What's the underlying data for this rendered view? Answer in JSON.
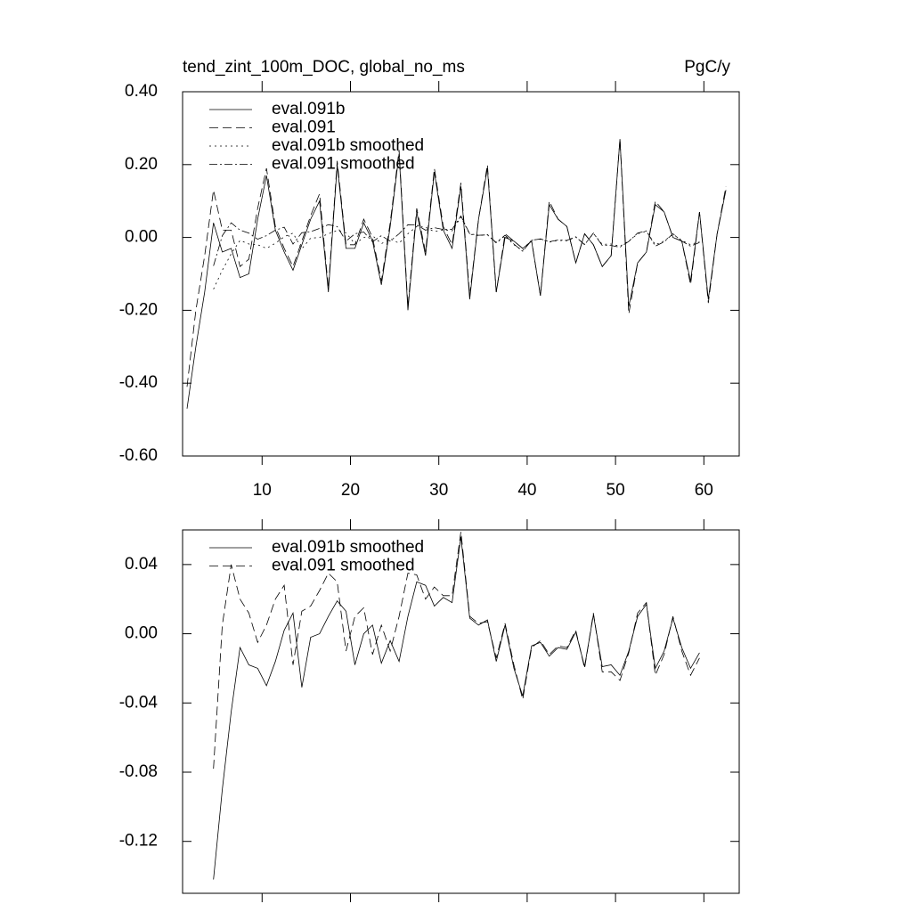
{
  "chart_data": [
    {
      "type": "line",
      "title": "tend_zint_100m_DOC, global_no_ms",
      "units": "PgC/y",
      "xlim": [
        1,
        64
      ],
      "xticks": [
        10,
        20,
        30,
        40,
        50,
        60
      ],
      "ylim": [
        -0.6,
        0.4
      ],
      "yticks": [
        {
          "value": -0.6,
          "label": "-0.60"
        },
        {
          "value": -0.4,
          "label": "-0.40"
        },
        {
          "value": -0.2,
          "label": "-0.20"
        },
        {
          "value": 0,
          "label": "0.00"
        },
        {
          "value": 0.2,
          "label": "0.20"
        },
        {
          "value": 0.4,
          "label": "0.40"
        }
      ],
      "legend": "upper left",
      "series": [
        {
          "name": "eval.091b",
          "color": "#000000",
          "dash": "solid",
          "x": [
            1.5,
            2.5,
            3.5,
            4.5,
            5.5,
            6.5,
            7.5,
            8.5,
            9.5,
            10.5,
            11.5,
            12.5,
            13.5,
            14.5,
            15.5,
            16.5,
            17.5,
            18.5,
            19.5,
            20.5,
            21.5,
            22.5,
            23.5,
            24.5,
            25.5,
            26.5,
            27.5,
            28.5,
            29.5,
            30.5,
            31.5,
            32.5,
            33.5,
            34.5,
            35.5,
            36.5,
            37.5,
            38.5,
            39.5,
            40.5,
            41.5,
            42.5,
            43.5,
            44.5,
            45.5,
            46.5,
            47.5,
            48.5,
            49.5,
            50.5,
            51.5,
            52.5,
            53.5,
            54.5,
            55.5,
            56.5,
            57.5,
            58.5,
            59.5,
            60.5,
            61.5,
            62.5
          ],
          "values": [
            -0.47,
            -0.3,
            -0.15,
            0.04,
            -0.04,
            -0.03,
            -0.11,
            -0.1,
            0.05,
            0.17,
            0.02,
            -0.04,
            -0.09,
            -0.02,
            0.05,
            0.1,
            -0.15,
            0.2,
            -0.03,
            -0.03,
            0.04,
            -0.01,
            -0.13,
            0.03,
            0.23,
            -0.2,
            0.07,
            -0.05,
            0.18,
            0.02,
            -0.03,
            0.14,
            -0.17,
            0.05,
            0.19,
            -0.15,
            0.0,
            -0.01,
            -0.03,
            -0.01,
            -0.16,
            0.09,
            0.05,
            0.03,
            -0.07,
            0.01,
            -0.02,
            -0.08,
            -0.05,
            0.27,
            -0.19,
            -0.07,
            -0.04,
            0.09,
            0.07,
            0.0,
            -0.01,
            -0.12,
            0.07,
            -0.17,
            0.01,
            0.13
          ]
        },
        {
          "name": "eval.091",
          "color": "#000000",
          "dash": "dashed",
          "x": [
            1.5,
            2.5,
            3.5,
            4.5,
            5.5,
            6.5,
            7.5,
            8.5,
            9.5,
            10.5,
            11.5,
            12.5,
            13.5,
            14.5,
            15.5,
            16.5,
            17.5,
            18.5,
            19.5,
            20.5,
            21.5,
            22.5,
            23.5,
            24.5,
            25.5,
            26.5,
            27.5,
            28.5,
            29.5,
            30.5,
            31.5,
            32.5,
            33.5,
            34.5,
            35.5,
            36.5,
            37.5,
            38.5,
            39.5,
            40.5,
            41.5,
            42.5,
            43.5,
            44.5,
            45.5,
            46.5,
            47.5,
            48.5,
            49.5,
            50.5,
            51.5,
            52.5,
            53.5,
            54.5,
            55.5,
            56.5,
            57.5,
            58.5,
            59.5,
            60.5,
            61.5,
            62.5
          ],
          "values": [
            -0.41,
            -0.2,
            -0.05,
            0.13,
            0.02,
            0.02,
            -0.08,
            -0.06,
            0.08,
            0.19,
            0.03,
            -0.03,
            -0.08,
            -0.01,
            0.06,
            0.12,
            -0.14,
            0.21,
            -0.02,
            -0.02,
            0.05,
            0.0,
            -0.12,
            0.04,
            0.24,
            -0.19,
            0.08,
            -0.04,
            0.19,
            0.03,
            -0.02,
            0.15,
            -0.16,
            0.05,
            0.2,
            -0.15,
            0.01,
            -0.01,
            -0.03,
            -0.01,
            -0.16,
            0.1,
            0.05,
            0.03,
            -0.07,
            0.01,
            -0.02,
            -0.08,
            -0.05,
            0.27,
            -0.21,
            -0.07,
            -0.04,
            0.1,
            0.07,
            0.0,
            -0.01,
            -0.13,
            0.07,
            -0.18,
            0.01,
            0.14
          ]
        },
        {
          "name": "eval.091b smoothed",
          "color": "#000000",
          "dash": "dotted",
          "x": [
            4.5,
            5.5,
            6.5,
            7.5,
            8.5,
            9.5,
            10.5,
            11.5,
            12.5,
            13.5,
            14.5,
            15.5,
            16.5,
            17.5,
            18.5,
            19.5,
            20.5,
            21.5,
            22.5,
            23.5,
            24.5,
            25.5,
            26.5,
            27.5,
            28.5,
            29.5,
            30.5,
            31.5,
            32.5,
            33.5,
            34.5,
            35.5,
            36.5,
            37.5,
            38.5,
            39.5,
            40.5,
            41.5,
            42.5,
            43.5,
            44.5,
            45.5,
            46.5,
            47.5,
            48.5,
            49.5,
            50.5,
            51.5,
            52.5,
            53.5,
            54.5,
            55.5,
            56.5,
            57.5,
            58.5,
            59.5
          ],
          "values": [
            -0.142,
            -0.09,
            -0.045,
            -0.008,
            -0.018,
            -0.02,
            -0.03,
            -0.016,
            0.002,
            0.012,
            -0.031,
            -0.002,
            0.0,
            0.01,
            0.019,
            0.013,
            -0.018,
            0.0,
            0.005,
            -0.017,
            -0.004,
            -0.016,
            0.01,
            0.03,
            0.028,
            0.016,
            0.021,
            0.018,
            0.056,
            0.009,
            0.005,
            0.008,
            -0.016,
            0.005,
            -0.02,
            -0.036,
            -0.007,
            -0.005,
            -0.013,
            -0.008,
            -0.009,
            0.001,
            -0.019,
            0.011,
            -0.019,
            -0.018,
            -0.024,
            -0.01,
            0.01,
            0.017,
            -0.02,
            -0.01,
            0.009,
            -0.008,
            -0.02,
            -0.011
          ]
        },
        {
          "name": "eval.091 smoothed",
          "color": "#000000",
          "dash": "dashdot",
          "x": [
            4.5,
            5.5,
            6.5,
            7.5,
            8.5,
            9.5,
            10.5,
            11.5,
            12.5,
            13.5,
            14.5,
            15.5,
            16.5,
            17.5,
            18.5,
            19.5,
            20.5,
            21.5,
            22.5,
            23.5,
            24.5,
            25.5,
            26.5,
            27.5,
            28.5,
            29.5,
            30.5,
            31.5,
            32.5,
            33.5,
            34.5,
            35.5,
            36.5,
            37.5,
            38.5,
            39.5,
            40.5,
            41.5,
            42.5,
            43.5,
            44.5,
            45.5,
            46.5,
            47.5,
            48.5,
            49.5,
            50.5,
            51.5,
            52.5,
            53.5,
            54.5,
            55.5,
            56.5,
            57.5,
            58.5,
            59.5
          ],
          "values": [
            -0.078,
            0.005,
            0.04,
            0.02,
            0.012,
            -0.005,
            0.005,
            0.02,
            0.028,
            -0.018,
            0.013,
            0.016,
            0.025,
            0.035,
            0.03,
            -0.01,
            0.01,
            0.015,
            -0.012,
            0.005,
            -0.01,
            0.01,
            0.035,
            0.034,
            0.02,
            0.027,
            0.022,
            0.022,
            0.059,
            0.01,
            0.006,
            0.007,
            -0.014,
            0.006,
            -0.018,
            -0.038,
            -0.008,
            -0.004,
            -0.012,
            -0.007,
            -0.008,
            0.002,
            -0.02,
            0.012,
            -0.022,
            -0.022,
            -0.027,
            -0.011,
            0.012,
            0.018,
            -0.024,
            -0.012,
            0.01,
            -0.01,
            -0.024,
            -0.014
          ]
        }
      ]
    },
    {
      "type": "line",
      "xlim": [
        1,
        64
      ],
      "xticks": [
        10,
        20,
        30,
        40,
        50,
        60
      ],
      "ylim": [
        -0.15,
        0.06
      ],
      "yticks": [
        {
          "value": -0.12,
          "label": "-0.12"
        },
        {
          "value": -0.08,
          "label": "-0.08"
        },
        {
          "value": -0.04,
          "label": "-0.04"
        },
        {
          "value": 0,
          "label": "0.00"
        },
        {
          "value": 0.04,
          "label": "0.04"
        }
      ],
      "legend": "upper left",
      "series": [
        {
          "name": "eval.091b smoothed",
          "color": "#000000",
          "dash": "solid",
          "x": [
            4.5,
            5.5,
            6.5,
            7.5,
            8.5,
            9.5,
            10.5,
            11.5,
            12.5,
            13.5,
            14.5,
            15.5,
            16.5,
            17.5,
            18.5,
            19.5,
            20.5,
            21.5,
            22.5,
            23.5,
            24.5,
            25.5,
            26.5,
            27.5,
            28.5,
            29.5,
            30.5,
            31.5,
            32.5,
            33.5,
            34.5,
            35.5,
            36.5,
            37.5,
            38.5,
            39.5,
            40.5,
            41.5,
            42.5,
            43.5,
            44.5,
            45.5,
            46.5,
            47.5,
            48.5,
            49.5,
            50.5,
            51.5,
            52.5,
            53.5,
            54.5,
            55.5,
            56.5,
            57.5,
            58.5,
            59.5
          ],
          "values": [
            -0.142,
            -0.09,
            -0.045,
            -0.008,
            -0.018,
            -0.02,
            -0.03,
            -0.016,
            0.002,
            0.012,
            -0.031,
            -0.002,
            0.0,
            0.01,
            0.019,
            0.013,
            -0.018,
            0.0,
            0.005,
            -0.017,
            -0.004,
            -0.016,
            0.01,
            0.03,
            0.028,
            0.016,
            0.021,
            0.018,
            0.056,
            0.009,
            0.005,
            0.008,
            -0.016,
            0.005,
            -0.02,
            -0.036,
            -0.007,
            -0.005,
            -0.013,
            -0.008,
            -0.009,
            0.001,
            -0.019,
            0.011,
            -0.019,
            -0.018,
            -0.024,
            -0.01,
            0.01,
            0.017,
            -0.02,
            -0.01,
            0.009,
            -0.008,
            -0.02,
            -0.011
          ]
        },
        {
          "name": "eval.091 smoothed",
          "color": "#000000",
          "dash": "dashed",
          "x": [
            4.5,
            5.5,
            6.5,
            7.5,
            8.5,
            9.5,
            10.5,
            11.5,
            12.5,
            13.5,
            14.5,
            15.5,
            16.5,
            17.5,
            18.5,
            19.5,
            20.5,
            21.5,
            22.5,
            23.5,
            24.5,
            25.5,
            26.5,
            27.5,
            28.5,
            29.5,
            30.5,
            31.5,
            32.5,
            33.5,
            34.5,
            35.5,
            36.5,
            37.5,
            38.5,
            39.5,
            40.5,
            41.5,
            42.5,
            43.5,
            44.5,
            45.5,
            46.5,
            47.5,
            48.5,
            49.5,
            50.5,
            51.5,
            52.5,
            53.5,
            54.5,
            55.5,
            56.5,
            57.5,
            58.5,
            59.5
          ],
          "values": [
            -0.078,
            0.005,
            0.04,
            0.02,
            0.012,
            -0.005,
            0.005,
            0.02,
            0.028,
            -0.018,
            0.013,
            0.016,
            0.025,
            0.035,
            0.03,
            -0.01,
            0.01,
            0.015,
            -0.012,
            0.005,
            -0.01,
            0.01,
            0.035,
            0.034,
            0.02,
            0.027,
            0.022,
            0.022,
            0.059,
            0.01,
            0.006,
            0.007,
            -0.014,
            0.006,
            -0.018,
            -0.038,
            -0.008,
            -0.004,
            -0.012,
            -0.007,
            -0.008,
            0.002,
            -0.02,
            0.012,
            -0.022,
            -0.022,
            -0.027,
            -0.011,
            0.012,
            0.018,
            -0.024,
            -0.012,
            0.01,
            -0.01,
            -0.024,
            -0.014
          ]
        }
      ]
    }
  ]
}
